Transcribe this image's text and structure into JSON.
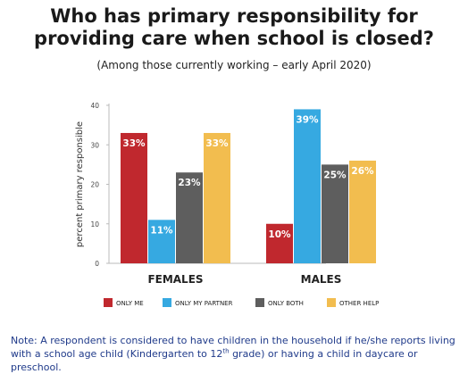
{
  "title_line1": "Who has primary responsibility for",
  "title_line2": "providing care when school is closed?",
  "subtitle": "(Among those currently working – early April 2020)",
  "note": {
    "part1": "Note: A respondent is considered to have children in the household if he/she reports living with a school age child (Kindergarten to 12",
    "sup": "th",
    "part2": " grade) or having a child in daycare or preschool."
  },
  "chart_data": {
    "type": "bar",
    "ylabel": "percent primary responsible",
    "ylim": [
      0,
      40
    ],
    "yticks": [
      0,
      10,
      20,
      30,
      40
    ],
    "categories": [
      "FEMALES",
      "MALES"
    ],
    "series": [
      {
        "name": "ONLY ME",
        "color": "#c0282e",
        "values": [
          33,
          10
        ],
        "labels": [
          "33%",
          "10%"
        ]
      },
      {
        "name": "ONLY MY PARTNER",
        "color": "#36a9e1",
        "values": [
          11,
          39
        ],
        "labels": [
          "11%",
          "39%"
        ]
      },
      {
        "name": "ONLY BOTH",
        "color": "#5e5e5e",
        "values": [
          23,
          25
        ],
        "labels": [
          "23%",
          "25%"
        ]
      },
      {
        "name": "OTHER HELP",
        "color": "#f2bd4f",
        "values": [
          33,
          26
        ],
        "labels": [
          "33%",
          "26%"
        ]
      }
    ],
    "legend_position": "bottom",
    "grid": false
  }
}
